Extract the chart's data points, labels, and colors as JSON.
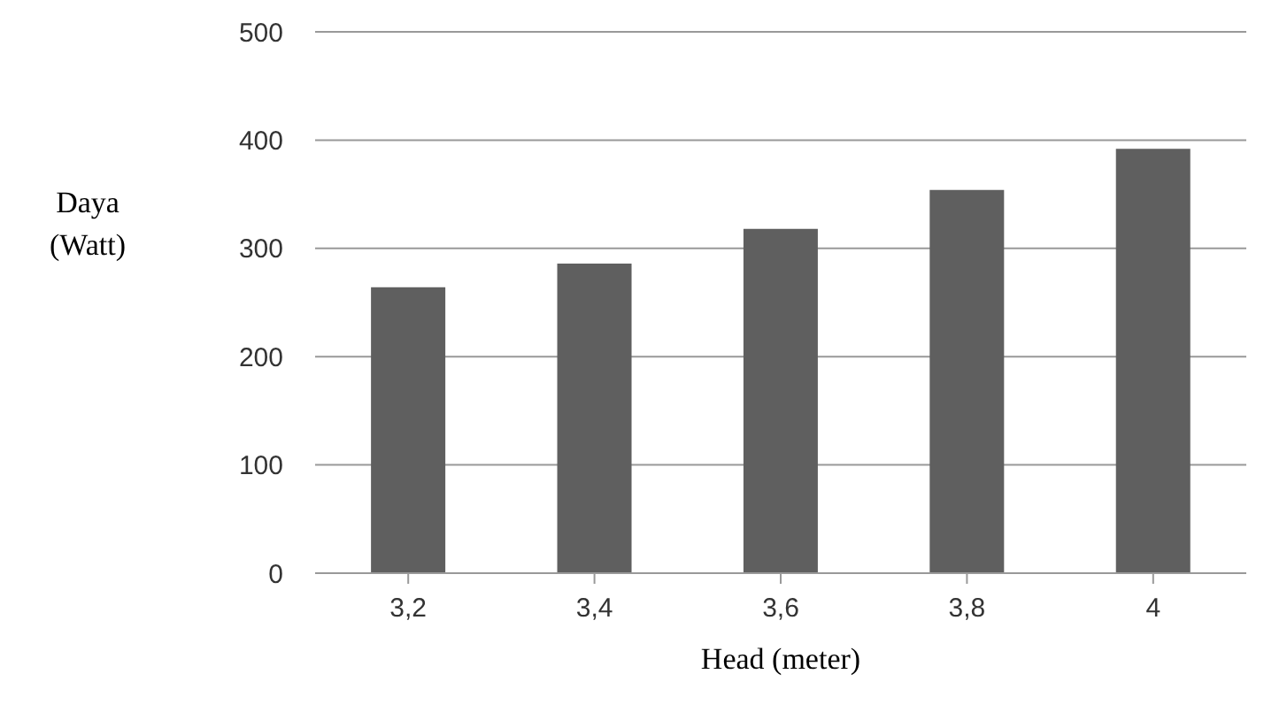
{
  "chart_data": {
    "type": "bar",
    "xlabel": "Head (meter)",
    "ylabel": "Daya\n(Watt)",
    "categories": [
      "3,2",
      "3,4",
      "3,6",
      "3,8",
      "4"
    ],
    "values": [
      264,
      286,
      318,
      354,
      392
    ],
    "color": "#5f5f5f",
    "ylim": [
      0,
      500
    ],
    "yticks": [
      0,
      100,
      200,
      300,
      400,
      500
    ],
    "grid": "y"
  }
}
